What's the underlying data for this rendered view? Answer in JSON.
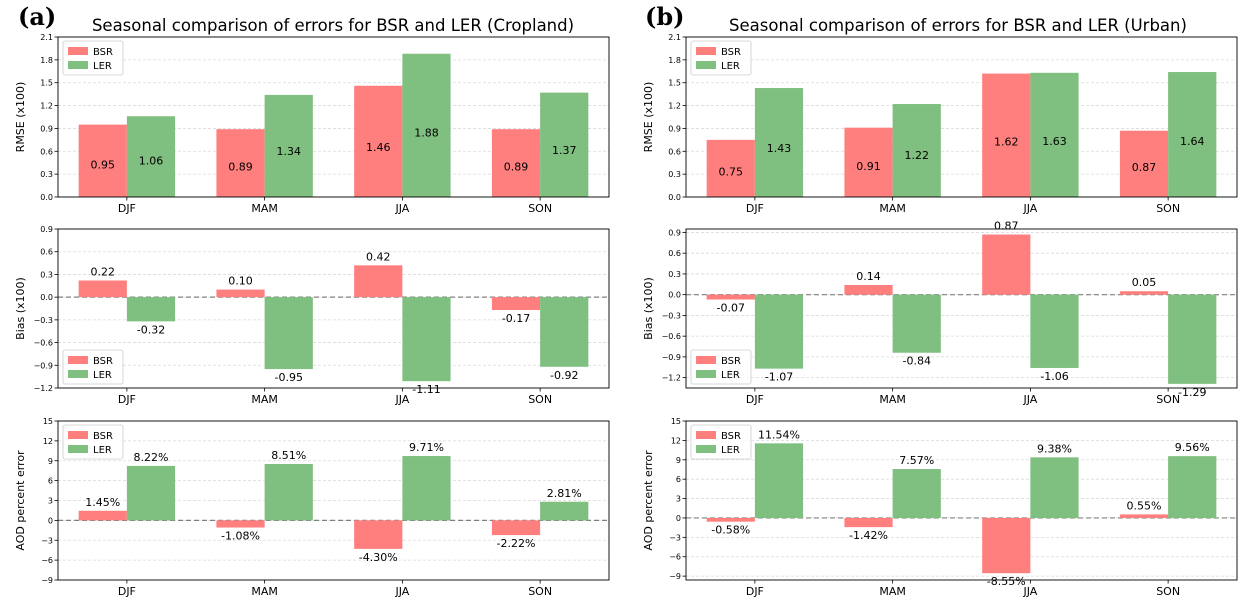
{
  "panels": [
    {
      "letter": "(a)",
      "title": "Seasonal comparison of errors for BSR and LER (Cropland)",
      "charts": [
        {
          "type": "bar",
          "ylabel": "RMSE (x100)",
          "categories": [
            "DJF",
            "MAM",
            "JJA",
            "SON"
          ],
          "series": [
            {
              "name": "BSR",
              "color": "#ff7f7f",
              "values": [
                0.95,
                0.89,
                1.46,
                0.89
              ],
              "labels": [
                "0.95",
                "0.89",
                "1.46",
                "0.89"
              ]
            },
            {
              "name": "LER",
              "color": "#7fbf7f",
              "values": [
                1.06,
                1.34,
                1.88,
                1.37
              ],
              "labels": [
                "1.06",
                "1.34",
                "1.88",
                "1.37"
              ]
            }
          ],
          "ylim": [
            0,
            2.1
          ],
          "yticks": [
            0,
            0.3,
            0.6,
            0.9,
            1.2,
            1.5,
            1.8,
            2.1
          ],
          "ytick_labels": [
            "0.0",
            "0.3",
            "0.6",
            "0.9",
            "1.2",
            "1.5",
            "1.8",
            "2.1"
          ],
          "zero_line": false,
          "legend": "top-left",
          "grid": "y"
        },
        {
          "type": "bar",
          "ylabel": "Bias (x100)",
          "categories": [
            "DJF",
            "MAM",
            "JJA",
            "SON"
          ],
          "series": [
            {
              "name": "BSR",
              "color": "#ff7f7f",
              "values": [
                0.22,
                0.1,
                0.42,
                -0.17
              ],
              "labels": [
                "0.22",
                "0.10",
                "0.42",
                "-0.17"
              ]
            },
            {
              "name": "LER",
              "color": "#7fbf7f",
              "values": [
                -0.32,
                -0.95,
                -1.11,
                -0.92
              ],
              "labels": [
                "-0.32",
                "-0.95",
                "-1.11",
                "-0.92"
              ]
            }
          ],
          "ylim": [
            -1.2,
            0.9
          ],
          "yticks": [
            -1.2,
            -0.9,
            -0.6,
            -0.3,
            0,
            0.3,
            0.6,
            0.9
          ],
          "ytick_labels": [
            "−1.2",
            "−0.9",
            "−0.6",
            "−0.3",
            "0.0",
            "0.3",
            "0.6",
            "0.9"
          ],
          "zero_line": true,
          "legend": "bottom-left",
          "grid": "y"
        },
        {
          "type": "bar",
          "ylabel": "AOD percent error",
          "categories": [
            "DJF",
            "MAM",
            "JJA",
            "SON"
          ],
          "series": [
            {
              "name": "BSR",
              "color": "#ff7f7f",
              "values": [
                1.45,
                -1.08,
                -4.3,
                -2.22
              ],
              "labels": [
                "1.45%",
                "-1.08%",
                "-4.30%",
                "-2.22%"
              ]
            },
            {
              "name": "LER",
              "color": "#7fbf7f",
              "values": [
                8.22,
                8.51,
                9.71,
                2.81
              ],
              "labels": [
                "8.22%",
                "8.51%",
                "9.71%",
                "2.81%"
              ]
            }
          ],
          "ylim": [
            -9,
            15
          ],
          "yticks": [
            -9,
            -6,
            -3,
            0,
            3,
            6,
            9,
            12,
            15
          ],
          "ytick_labels": [
            "−9",
            "−6",
            "−3",
            "0",
            "3",
            "6",
            "9",
            "12",
            "15"
          ],
          "zero_line": true,
          "legend": "top-left",
          "grid": "y"
        }
      ]
    },
    {
      "letter": "(b)",
      "title": "Seasonal comparison of errors for BSR and LER (Urban)",
      "charts": [
        {
          "type": "bar",
          "ylabel": "RMSE (x100)",
          "categories": [
            "DJF",
            "MAM",
            "JJA",
            "SON"
          ],
          "series": [
            {
              "name": "BSR",
              "color": "#ff7f7f",
              "values": [
                0.75,
                0.91,
                1.62,
                0.87
              ],
              "labels": [
                "0.75",
                "0.91",
                "1.62",
                "0.87"
              ]
            },
            {
              "name": "LER",
              "color": "#7fbf7f",
              "values": [
                1.43,
                1.22,
                1.63,
                1.64
              ],
              "labels": [
                "1.43",
                "1.22",
                "1.63",
                "1.64"
              ]
            }
          ],
          "ylim": [
            0,
            2.1
          ],
          "yticks": [
            0,
            0.3,
            0.6,
            0.9,
            1.2,
            1.5,
            1.8,
            2.1
          ],
          "ytick_labels": [
            "0.0",
            "0.3",
            "0.6",
            "0.9",
            "1.2",
            "1.5",
            "1.8",
            "2.1"
          ],
          "zero_line": false,
          "legend": "top-left",
          "grid": "y"
        },
        {
          "type": "bar",
          "ylabel": "Bias (x100)",
          "categories": [
            "DJF",
            "MAM",
            "JJA",
            "SON"
          ],
          "series": [
            {
              "name": "BSR",
              "color": "#ff7f7f",
              "values": [
                -0.07,
                0.14,
                0.87,
                0.05
              ],
              "labels": [
                "-0.07",
                "0.14",
                "0.87",
                "0.05"
              ]
            },
            {
              "name": "LER",
              "color": "#7fbf7f",
              "values": [
                -1.07,
                -0.84,
                -1.06,
                -1.29
              ],
              "labels": [
                "-1.07",
                "-0.84",
                "-1.06",
                "-1.29"
              ]
            }
          ],
          "ylim": [
            -1.35,
            0.95
          ],
          "yticks": [
            -1.2,
            -0.9,
            -0.6,
            -0.3,
            0,
            0.3,
            0.6,
            0.9
          ],
          "ytick_labels": [
            "−1.2",
            "−0.9",
            "−0.6",
            "−0.3",
            "0.0",
            "0.3",
            "0.6",
            "0.9"
          ],
          "zero_line": true,
          "legend": "bottom-left",
          "grid": "y"
        },
        {
          "type": "bar",
          "ylabel": "AOD percent error",
          "categories": [
            "DJF",
            "MAM",
            "JJA",
            "SON"
          ],
          "series": [
            {
              "name": "BSR",
              "color": "#ff7f7f",
              "values": [
                -0.58,
                -1.42,
                -8.55,
                0.55
              ],
              "labels": [
                "-0.58%",
                "-1.42%",
                "-8.55%",
                "0.55%"
              ]
            },
            {
              "name": "LER",
              "color": "#7fbf7f",
              "values": [
                11.54,
                7.57,
                9.38,
                9.56
              ],
              "labels": [
                "11.54%",
                "7.57%",
                "9.38%",
                "9.56%"
              ]
            }
          ],
          "ylim": [
            -9.6,
            15
          ],
          "yticks": [
            -9,
            -6,
            -3,
            0,
            3,
            6,
            9,
            12,
            15
          ],
          "ytick_labels": [
            "−9",
            "−6",
            "−3",
            "0",
            "3",
            "6",
            "9",
            "12",
            "15"
          ],
          "zero_line": true,
          "legend": "top-left",
          "grid": "y"
        }
      ]
    }
  ]
}
